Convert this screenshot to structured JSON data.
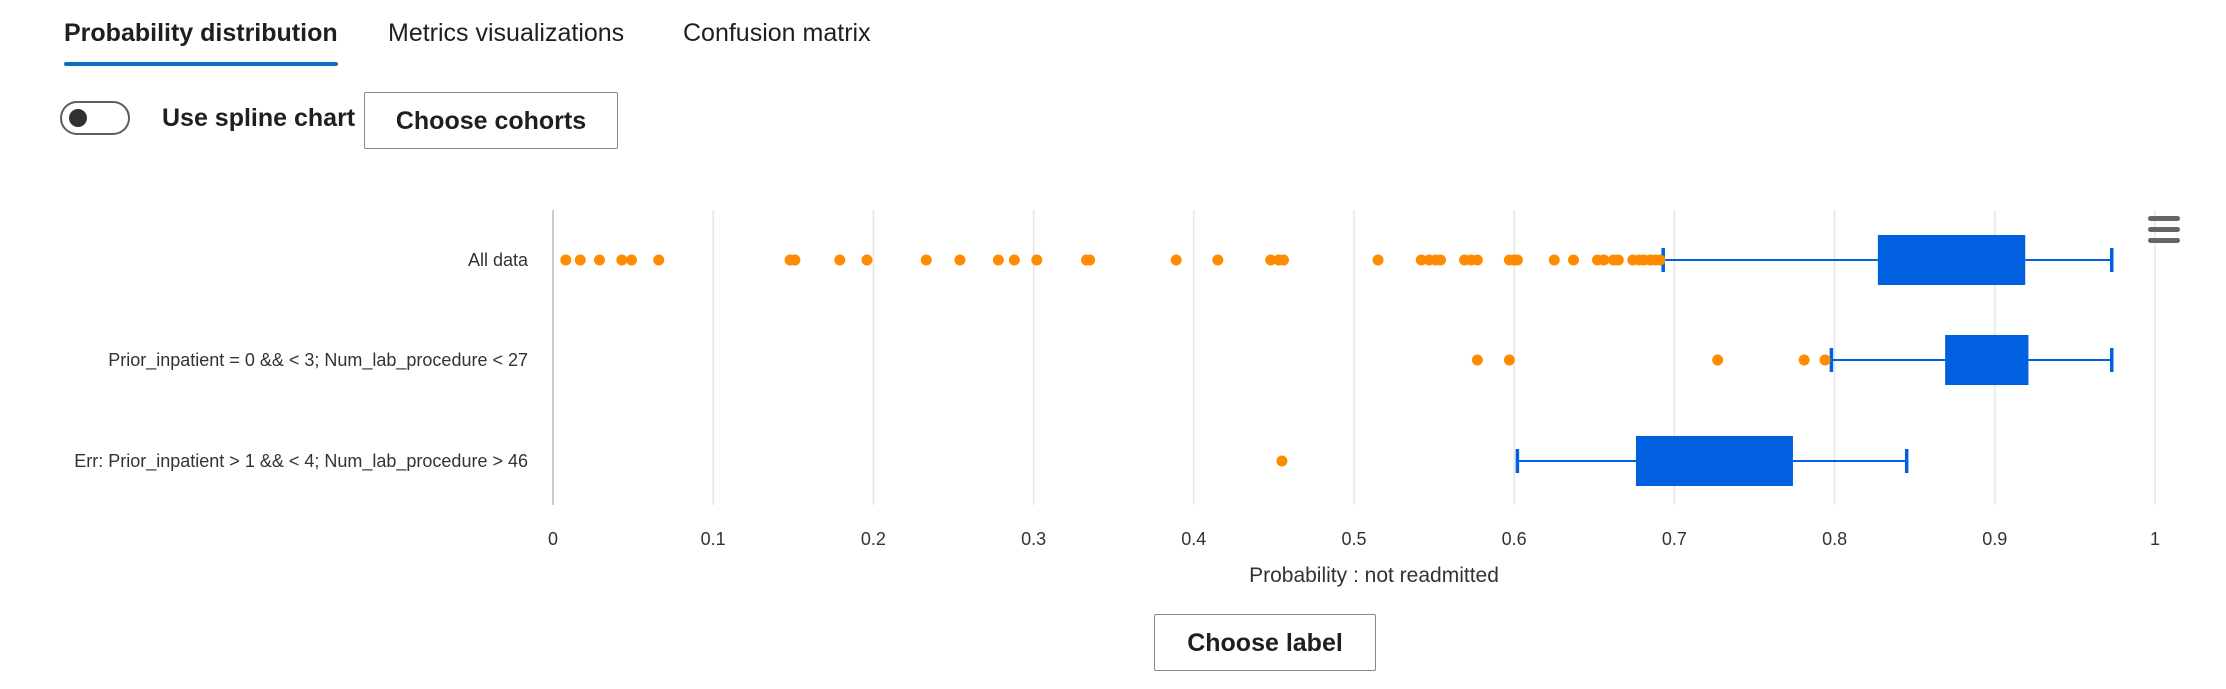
{
  "tabs": [
    {
      "label": "Probability distribution",
      "active": true
    },
    {
      "label": "Metrics visualizations",
      "active": false
    },
    {
      "label": "Confusion matrix",
      "active": false
    }
  ],
  "controls": {
    "spline_label": "Use spline chart",
    "spline_on": false,
    "choose_cohorts": "Choose cohorts",
    "choose_label": "Choose label"
  },
  "colors": {
    "box": "#0060df",
    "outlier": "#ff8c00",
    "accent": "#0f6cbd"
  },
  "icons": [
    "hamburger-menu-icon"
  ],
  "chart_data": {
    "type": "boxplot",
    "orientation": "horizontal",
    "xlabel": "Probability : not readmitted",
    "xlim": [
      0,
      1
    ],
    "xticks": [
      0,
      0.1,
      0.2,
      0.3,
      0.4,
      0.5,
      0.6,
      0.7,
      0.8,
      0.9,
      1
    ],
    "xtick_labels": [
      "0",
      "0.1",
      "0.2",
      "0.3",
      "0.4",
      "0.5",
      "0.6",
      "0.7",
      "0.8",
      "0.9",
      "1"
    ],
    "grid": true,
    "series": [
      {
        "name": "All data",
        "whisker_low": 0.693,
        "q1": 0.827,
        "q3": 0.919,
        "whisker_high": 0.973,
        "outliers": [
          0.008,
          0.017,
          0.029,
          0.043,
          0.049,
          0.066,
          0.148,
          0.151,
          0.179,
          0.196,
          0.233,
          0.254,
          0.278,
          0.288,
          0.302,
          0.333,
          0.335,
          0.389,
          0.415,
          0.448,
          0.453,
          0.456,
          0.515,
          0.542,
          0.547,
          0.551,
          0.554,
          0.569,
          0.573,
          0.577,
          0.597,
          0.6,
          0.602,
          0.625,
          0.637,
          0.652,
          0.656,
          0.662,
          0.665,
          0.674,
          0.678,
          0.681,
          0.685,
          0.688,
          0.691
        ]
      },
      {
        "name": "Prior_inpatient = 0 && < 3; Num_lab_procedure < 27",
        "whisker_low": 0.798,
        "q1": 0.869,
        "q3": 0.921,
        "whisker_high": 0.973,
        "outliers": [
          0.577,
          0.597,
          0.727,
          0.781,
          0.794
        ]
      },
      {
        "name": "Err: Prior_inpatient > 1 && < 4; Num_lab_procedure > 46",
        "whisker_low": 0.602,
        "q1": 0.676,
        "q3": 0.774,
        "whisker_high": 0.845,
        "outliers": [
          0.455
        ]
      }
    ]
  }
}
